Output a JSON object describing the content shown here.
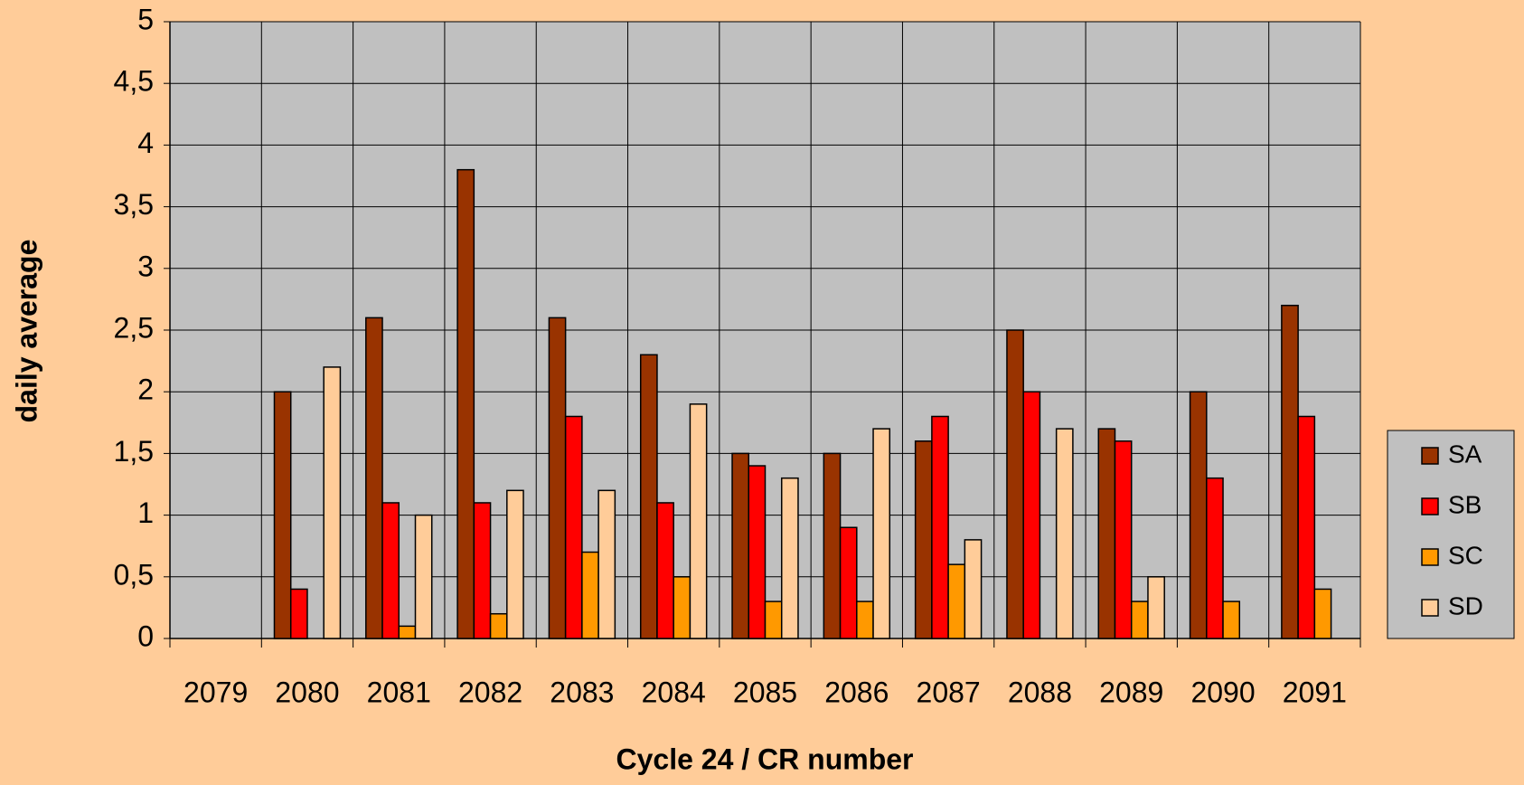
{
  "chart_data": {
    "type": "bar",
    "x_label": "Cycle 24 / CR number",
    "y_label": "daily average",
    "categories": [
      "2079",
      "2080",
      "2081",
      "2082",
      "2083",
      "2084",
      "2085",
      "2086",
      "2087",
      "2088",
      "2089",
      "2090",
      "2091"
    ],
    "series": [
      {
        "name": "SA",
        "color": "#993300",
        "values": [
          null,
          2,
          2.6,
          3.8,
          2.6,
          2.3,
          1.5,
          1.5,
          1.6,
          2.5,
          1.7,
          2,
          2.7
        ]
      },
      {
        "name": "SB",
        "color": "#ff0000",
        "values": [
          null,
          0.4,
          1.1,
          1.1,
          1.8,
          1.1,
          1.4,
          0.9,
          1.8,
          2,
          1.6,
          1.3,
          1.8
        ]
      },
      {
        "name": "SC",
        "color": "#ff9900",
        "values": [
          null,
          null,
          0.1,
          0.2,
          0.7,
          0.5,
          0.3,
          0.3,
          0.6,
          null,
          0.3,
          0.3,
          0.4
        ]
      },
      {
        "name": "SD",
        "color": "#ffcc99",
        "values": [
          null,
          2.2,
          1,
          1.2,
          1.2,
          1.9,
          1.3,
          1.7,
          0.8,
          1.7,
          0.5,
          null,
          null
        ]
      }
    ],
    "ylim": [
      0,
      5
    ],
    "yticks": [
      0,
      {
        "value": 0.5,
        "label": "0,5"
      },
      1,
      {
        "value": 1.5,
        "label": "1,5"
      },
      2,
      {
        "value": 2.5,
        "label": "2,5"
      },
      3,
      {
        "value": 3.5,
        "label": "3,5"
      },
      4,
      {
        "value": 4.5,
        "label": "4,5"
      },
      5
    ],
    "grid": true,
    "legend": "right"
  }
}
